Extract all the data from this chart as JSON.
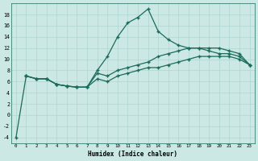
{
  "xlabel": "Humidex (Indice chaleur)",
  "bg_color": "#cce8e5",
  "line_color": "#1a6b5a",
  "grid_color": "#afd4d0",
  "xlim": [
    -0.5,
    23.5
  ],
  "ylim": [
    -5,
    20
  ],
  "xticks": [
    0,
    1,
    2,
    3,
    4,
    5,
    6,
    7,
    8,
    9,
    10,
    11,
    12,
    13,
    14,
    15,
    16,
    17,
    18,
    19,
    20,
    21,
    22,
    23
  ],
  "yticks": [
    -4,
    -2,
    0,
    2,
    4,
    6,
    8,
    10,
    12,
    14,
    16,
    18
  ],
  "line1_x": [
    0,
    1,
    2,
    3,
    4,
    5,
    6,
    7,
    8,
    9,
    10,
    11,
    12,
    13,
    14,
    15,
    16,
    17,
    18,
    19,
    20,
    21,
    22,
    23
  ],
  "line1_y": [
    -4.0,
    7.0,
    6.5,
    6.5,
    5.5,
    5.2,
    5.0,
    5.0,
    8.0,
    10.5,
    14.0,
    16.5,
    17.5,
    19.0,
    15.0,
    13.5,
    12.5,
    12.0,
    12.0,
    11.5,
    11.0,
    11.0,
    10.5,
    9.0
  ],
  "line2_x": [
    1,
    2,
    3,
    4,
    5,
    6,
    7,
    8,
    9,
    10,
    11,
    12,
    13,
    14,
    15,
    16,
    17,
    18,
    19,
    20,
    21,
    22,
    23
  ],
  "line2_y": [
    7.0,
    6.5,
    6.5,
    5.5,
    5.2,
    5.0,
    5.0,
    7.5,
    7.0,
    8.0,
    8.5,
    9.0,
    9.5,
    10.5,
    11.0,
    11.5,
    12.0,
    12.0,
    12.0,
    12.0,
    11.5,
    11.0,
    9.0
  ],
  "line3_x": [
    1,
    2,
    3,
    4,
    5,
    6,
    7,
    8,
    9,
    10,
    11,
    12,
    13,
    14,
    15,
    16,
    17,
    18,
    19,
    20,
    21,
    22,
    23
  ],
  "line3_y": [
    7.0,
    6.5,
    6.5,
    5.5,
    5.2,
    5.0,
    5.0,
    6.5,
    6.0,
    7.0,
    7.5,
    8.0,
    8.5,
    8.5,
    9.0,
    9.5,
    10.0,
    10.5,
    10.5,
    10.5,
    10.5,
    10.0,
    9.0
  ]
}
